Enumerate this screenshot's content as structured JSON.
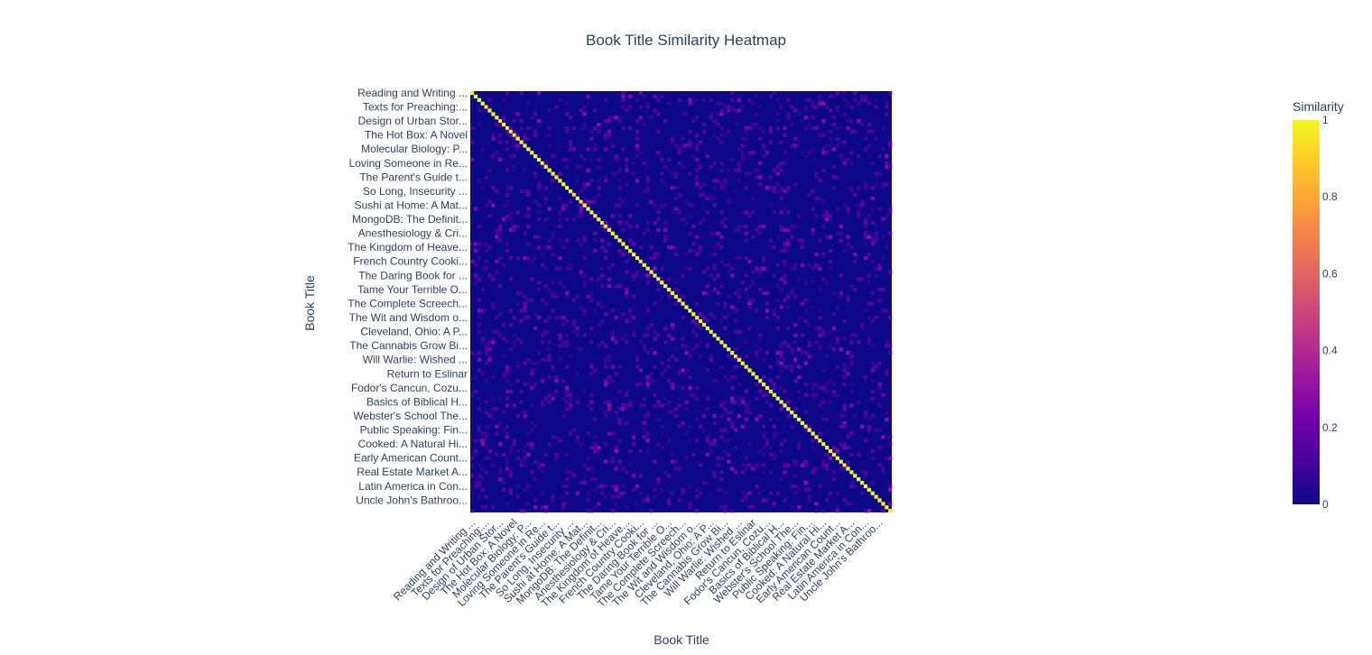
{
  "chart_data": {
    "type": "heatmap",
    "title": "Book Title Similarity Heatmap",
    "xlabel": "Book Title",
    "ylabel": "Book Title",
    "n_titles": 120,
    "tick_every": 4,
    "tick_labels": [
      "Reading and Writing ...",
      "Texts for Preaching:...",
      "Design of Urban Stor...",
      "The Hot Box: A Novel",
      "Molecular Biology: P...",
      "Loving Someone in Re...",
      "The Parent's Guide t...",
      "So Long, Insecurity ...",
      "Sushi at Home: A Mat...",
      "MongoDB: The Definit...",
      "Anesthesiology & Cri...",
      "The Kingdom of Heave...",
      "French Country Cooki...",
      "The Daring Book for ...",
      "Tame Your Terrible O...",
      "The Complete Screech...",
      "The Wit and Wisdom o...",
      "Cleveland, Ohio: A P...",
      "The Cannabis Grow Bi...",
      "Will Warlie: Wished ...",
      "Return to Eslinar",
      "Fodor's Cancun, Cozu...",
      "Basics of Biblical H...",
      "Webster's School The...",
      "Public Speaking: Fin...",
      "Cooked: A Natural Hi...",
      "Early American Count...",
      "Real Estate Market A...",
      "Latin America in Con...",
      "Uncle John's Bathroo..."
    ],
    "diagonal_value": 1,
    "off_diagonal_typical": 0.05,
    "off_diagonal_max": 0.3,
    "zmin": 0,
    "zmax": 1,
    "colorscale": [
      "#0d0887",
      "#46039f",
      "#7201a8",
      "#9c179e",
      "#bd3786",
      "#d8576b",
      "#ed7953",
      "#fb9f3a",
      "#fdca26",
      "#f0f921"
    ],
    "colorbar": {
      "title": "Similarity",
      "ticks": [
        "0",
        "0.2",
        "0.4",
        "0.6",
        "0.8",
        "1"
      ]
    }
  }
}
